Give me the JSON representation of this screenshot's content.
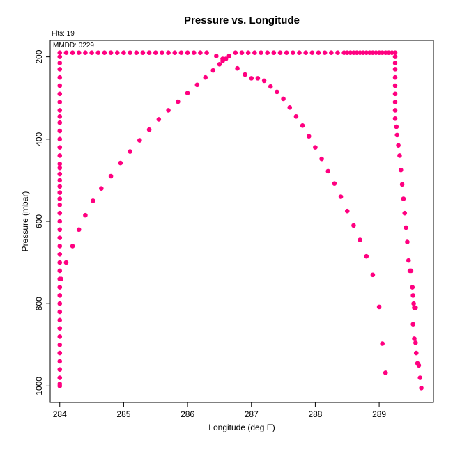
{
  "chart_data": {
    "type": "scatter",
    "title": "Pressure vs. Longitude",
    "xlabel": "Longitude (deg E)",
    "ylabel": "Pressure (mbar)",
    "xlim": [
      283.85,
      289.85
    ],
    "ylim": [
      1040,
      160
    ],
    "y_reversed": true,
    "grid": false,
    "legend": "none",
    "xticks": [
      284,
      285,
      286,
      287,
      288,
      289
    ],
    "yticks": [
      200,
      400,
      600,
      800,
      1000
    ],
    "annotations": {
      "flts": "Flts: 19",
      "mmdd": "MMDD: 0229"
    },
    "marker_color": "#ff0080",
    "series": [
      {
        "points": [
          [
            284.0,
            190
          ],
          [
            284.0,
            200
          ],
          [
            284.0,
            215
          ],
          [
            284.0,
            230
          ],
          [
            284.0,
            250
          ],
          [
            284.0,
            270
          ],
          [
            284.0,
            290
          ],
          [
            284.0,
            310
          ],
          [
            284.0,
            330
          ],
          [
            284.0,
            345
          ],
          [
            284.0,
            360
          ],
          [
            284.0,
            380
          ],
          [
            284.0,
            400
          ],
          [
            284.0,
            420
          ],
          [
            284.0,
            440
          ],
          [
            284.0,
            460
          ],
          [
            284.0,
            470
          ],
          [
            284.0,
            485
          ],
          [
            284.0,
            500
          ],
          [
            284.0,
            515
          ],
          [
            284.0,
            530
          ],
          [
            284.0,
            545
          ],
          [
            284.0,
            560
          ],
          [
            284.0,
            580
          ],
          [
            284.0,
            600
          ],
          [
            284.0,
            620
          ],
          [
            284.0,
            640
          ],
          [
            284.0,
            660
          ],
          [
            284.0,
            680
          ],
          [
            284.0,
            700
          ],
          [
            284.0,
            720
          ],
          [
            284.0,
            740
          ],
          [
            284.0,
            760
          ],
          [
            284.0,
            780
          ],
          [
            284.0,
            800
          ],
          [
            284.0,
            820
          ],
          [
            284.0,
            840
          ],
          [
            284.0,
            860
          ],
          [
            284.0,
            880
          ],
          [
            284.0,
            900
          ],
          [
            284.0,
            920
          ],
          [
            284.0,
            940
          ],
          [
            284.0,
            960
          ],
          [
            284.0,
            980
          ],
          [
            284.0,
            995
          ],
          [
            284.0,
            1000
          ],
          [
            284.1,
            190
          ],
          [
            284.2,
            190
          ],
          [
            284.3,
            190
          ],
          [
            284.4,
            190
          ],
          [
            284.5,
            190
          ],
          [
            284.6,
            190
          ],
          [
            284.7,
            190
          ],
          [
            284.8,
            190
          ],
          [
            284.9,
            190
          ],
          [
            285.0,
            190
          ],
          [
            285.1,
            190
          ],
          [
            285.2,
            190
          ],
          [
            285.3,
            190
          ],
          [
            285.4,
            190
          ],
          [
            285.5,
            190
          ],
          [
            285.6,
            190
          ],
          [
            285.7,
            190
          ],
          [
            285.8,
            190
          ],
          [
            285.9,
            190
          ],
          [
            286.0,
            190
          ],
          [
            286.1,
            190
          ],
          [
            286.2,
            190
          ],
          [
            286.3,
            190
          ],
          [
            286.45,
            198
          ],
          [
            286.55,
            205
          ],
          [
            286.75,
            190
          ],
          [
            286.85,
            190
          ],
          [
            286.95,
            190
          ],
          [
            287.05,
            190
          ],
          [
            287.15,
            190
          ],
          [
            287.25,
            190
          ],
          [
            287.35,
            190
          ],
          [
            287.45,
            190
          ],
          [
            287.55,
            190
          ],
          [
            287.65,
            190
          ],
          [
            287.75,
            190
          ],
          [
            287.85,
            190
          ],
          [
            287.95,
            190
          ],
          [
            288.05,
            190
          ],
          [
            288.15,
            190
          ],
          [
            288.25,
            190
          ],
          [
            288.35,
            190
          ],
          [
            288.45,
            190
          ],
          [
            288.5,
            190
          ],
          [
            288.55,
            190
          ],
          [
            288.6,
            190
          ],
          [
            288.65,
            190
          ],
          [
            288.7,
            190
          ],
          [
            288.75,
            190
          ],
          [
            288.8,
            190
          ],
          [
            288.85,
            190
          ],
          [
            288.9,
            190
          ],
          [
            288.95,
            190
          ],
          [
            289.0,
            190
          ],
          [
            289.05,
            190
          ],
          [
            289.1,
            190
          ],
          [
            289.15,
            190
          ],
          [
            289.2,
            190
          ],
          [
            289.25,
            190
          ],
          [
            289.25,
            200
          ],
          [
            289.25,
            215
          ],
          [
            289.25,
            230
          ],
          [
            289.25,
            250
          ],
          [
            289.25,
            270
          ],
          [
            289.25,
            290
          ],
          [
            289.25,
            310
          ],
          [
            289.25,
            330
          ],
          [
            289.25,
            350
          ],
          [
            289.27,
            370
          ],
          [
            289.28,
            390
          ],
          [
            289.3,
            415
          ],
          [
            289.32,
            440
          ],
          [
            289.34,
            475
          ],
          [
            289.36,
            510
          ],
          [
            289.38,
            545
          ],
          [
            289.4,
            580
          ],
          [
            289.42,
            615
          ],
          [
            289.44,
            650
          ],
          [
            289.46,
            695
          ],
          [
            289.48,
            720
          ],
          [
            289.5,
            720
          ],
          [
            289.52,
            760
          ],
          [
            289.53,
            780
          ],
          [
            289.54,
            800
          ],
          [
            289.55,
            810
          ],
          [
            289.56,
            810
          ],
          [
            289.57,
            810
          ],
          [
            289.53,
            850
          ],
          [
            289.55,
            885
          ],
          [
            289.57,
            895
          ],
          [
            289.58,
            920
          ],
          [
            289.6,
            945
          ],
          [
            289.62,
            950
          ],
          [
            289.64,
            980
          ],
          [
            289.66,
            1005
          ],
          [
            284.02,
            740
          ],
          [
            284.1,
            700
          ],
          [
            284.2,
            660
          ],
          [
            284.3,
            620
          ],
          [
            284.4,
            585
          ],
          [
            284.52,
            550
          ],
          [
            284.65,
            520
          ],
          [
            284.8,
            490
          ],
          [
            284.95,
            458
          ],
          [
            285.1,
            430
          ],
          [
            285.25,
            403
          ],
          [
            285.4,
            377
          ],
          [
            285.55,
            352
          ],
          [
            285.7,
            330
          ],
          [
            285.85,
            309
          ],
          [
            286.0,
            288
          ],
          [
            286.15,
            268
          ],
          [
            286.28,
            250
          ],
          [
            286.4,
            233
          ],
          [
            286.5,
            218
          ],
          [
            286.55,
            210
          ],
          [
            286.6,
            205
          ],
          [
            286.65,
            198
          ],
          [
            286.78,
            228
          ],
          [
            286.9,
            243
          ],
          [
            287.0,
            252
          ],
          [
            287.1,
            252
          ],
          [
            287.2,
            258
          ],
          [
            287.3,
            272
          ],
          [
            287.4,
            285
          ],
          [
            287.5,
            302
          ],
          [
            287.6,
            323
          ],
          [
            287.7,
            345
          ],
          [
            287.8,
            367
          ],
          [
            287.9,
            393
          ],
          [
            288.0,
            420
          ],
          [
            288.1,
            448
          ],
          [
            288.2,
            478
          ],
          [
            288.3,
            508
          ],
          [
            288.4,
            540
          ],
          [
            288.5,
            575
          ],
          [
            288.6,
            610
          ],
          [
            288.7,
            645
          ],
          [
            288.8,
            685
          ],
          [
            288.9,
            730
          ],
          [
            289.0,
            808
          ],
          [
            289.05,
            897
          ],
          [
            289.1,
            968
          ]
        ]
      }
    ]
  }
}
